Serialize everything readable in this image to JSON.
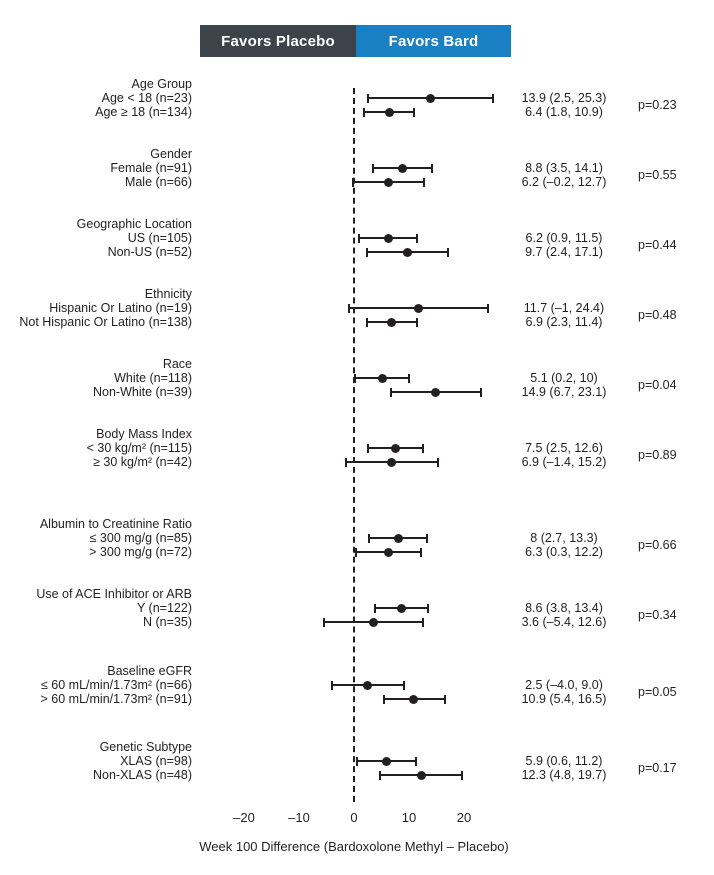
{
  "header": {
    "left_label": "Favors Placebo",
    "right_label": "Favors Bard",
    "left_color": "#3d4449",
    "right_color": "#1a80c4",
    "text_color": "#ffffff"
  },
  "chart_data": {
    "type": "forest",
    "title": "",
    "xlabel": "Week 100 Difference (Bardoxolone Methyl – Placebo)",
    "ylabel": "",
    "reference_line": 0,
    "marker_color": "#231f20",
    "grid": false,
    "x_axis": {
      "range": [
        -27,
        27
      ],
      "ticks": [
        {
          "value": -20,
          "label": "–20"
        },
        {
          "value": -10,
          "label": "–10"
        },
        {
          "value": 0,
          "label": "0"
        },
        {
          "value": 10,
          "label": "10"
        },
        {
          "value": 20,
          "label": "20"
        }
      ]
    },
    "groups": [
      {
        "name": "Age Group",
        "p_label": "p=0.23",
        "rows": [
          {
            "label": "Age < 18 (n=23)",
            "estimate": 13.9,
            "ci_low": 2.5,
            "ci_high": 25.3,
            "text": "13.9 (2.5, 25.3)"
          },
          {
            "label": "Age ≥ 18 (n=134)",
            "estimate": 6.4,
            "ci_low": 1.8,
            "ci_high": 10.9,
            "text": "6.4 (1.8, 10.9)"
          }
        ]
      },
      {
        "name": "Gender",
        "p_label": "p=0.55",
        "rows": [
          {
            "label": "Female (n=91)",
            "estimate": 8.8,
            "ci_low": 3.5,
            "ci_high": 14.1,
            "text": "8.8 (3.5, 14.1)"
          },
          {
            "label": "Male (n=66)",
            "estimate": 6.2,
            "ci_low": -0.2,
            "ci_high": 12.7,
            "text": "6.2 (–0.2, 12.7)"
          }
        ]
      },
      {
        "name": "Geographic Location",
        "p_label": "p=0.44",
        "rows": [
          {
            "label": "US (n=105)",
            "estimate": 6.2,
            "ci_low": 0.9,
            "ci_high": 11.5,
            "text": "6.2 (0.9, 11.5)"
          },
          {
            "label": "Non-US (n=52)",
            "estimate": 9.7,
            "ci_low": 2.4,
            "ci_high": 17.1,
            "text": "9.7 (2.4, 17.1)"
          }
        ]
      },
      {
        "name": "Ethnicity",
        "p_label": "p=0.48",
        "rows": [
          {
            "label": "Hispanic Or Latino (n=19)",
            "estimate": 11.7,
            "ci_low": -1,
            "ci_high": 24.4,
            "text": "11.7 (–1, 24.4)"
          },
          {
            "label": "Not Hispanic Or Latino (n=138)",
            "estimate": 6.9,
            "ci_low": 2.3,
            "ci_high": 11.4,
            "text": "6.9 (2.3, 11.4)"
          }
        ]
      },
      {
        "name": "Race",
        "p_label": "p=0.04",
        "rows": [
          {
            "label": "White (n=118)",
            "estimate": 5.1,
            "ci_low": 0.2,
            "ci_high": 10,
            "text": "5.1 (0.2, 10)"
          },
          {
            "label": "Non-White (n=39)",
            "estimate": 14.9,
            "ci_low": 6.7,
            "ci_high": 23.1,
            "text": "14.9 (6.7, 23.1)"
          }
        ]
      },
      {
        "name": "Body Mass Index",
        "p_label": "p=0.89",
        "rows": [
          {
            "label": "< 30 kg/m² (n=115)",
            "estimate": 7.5,
            "ci_low": 2.5,
            "ci_high": 12.6,
            "text": "7.5 (2.5, 12.6)"
          },
          {
            "label": "≥ 30 kg/m² (n=42)",
            "estimate": 6.9,
            "ci_low": -1.4,
            "ci_high": 15.2,
            "text": "6.9 (–1.4, 15.2)"
          }
        ]
      },
      {
        "name": "Albumin to Creatinine Ratio",
        "p_label": "p=0.66",
        "rows": [
          {
            "label": "≤ 300 mg/g (n=85)",
            "estimate": 8,
            "ci_low": 2.7,
            "ci_high": 13.3,
            "text": "8 (2.7, 13.3)"
          },
          {
            "label": "> 300 mg/g (n=72)",
            "estimate": 6.3,
            "ci_low": 0.3,
            "ci_high": 12.2,
            "text": "6.3 (0.3, 12.2)"
          }
        ]
      },
      {
        "name": "Use of ACE Inhibitor or ARB",
        "p_label": "p=0.34",
        "rows": [
          {
            "label": "Y (n=122)",
            "estimate": 8.6,
            "ci_low": 3.8,
            "ci_high": 13.4,
            "text": "8.6 (3.8, 13.4)"
          },
          {
            "label": "N (n=35)",
            "estimate": 3.6,
            "ci_low": -5.4,
            "ci_high": 12.6,
            "text": "3.6 (–5.4, 12.6)"
          }
        ]
      },
      {
        "name": "Baseline eGFR",
        "p_label": "p=0.05",
        "rows": [
          {
            "label": "≤ 60 mL/min/1.73m² (n=66)",
            "estimate": 2.5,
            "ci_low": -4.0,
            "ci_high": 9.0,
            "text": "2.5 (–4.0, 9.0)"
          },
          {
            "label": "> 60 mL/min/1.73m² (n=91)",
            "estimate": 10.9,
            "ci_low": 5.4,
            "ci_high": 16.5,
            "text": "10.9 (5.4, 16.5)"
          }
        ]
      },
      {
        "name": "Genetic Subtype",
        "p_label": "p=0.17",
        "rows": [
          {
            "label": "XLAS (n=98)",
            "estimate": 5.9,
            "ci_low": 0.6,
            "ci_high": 11.2,
            "text": "5.9 (0.6, 11.2)"
          },
          {
            "label": "Non-XLAS (n=48)",
            "estimate": 12.3,
            "ci_low": 4.8,
            "ci_high": 19.7,
            "text": "12.3 (4.8, 19.7)"
          }
        ]
      }
    ]
  }
}
